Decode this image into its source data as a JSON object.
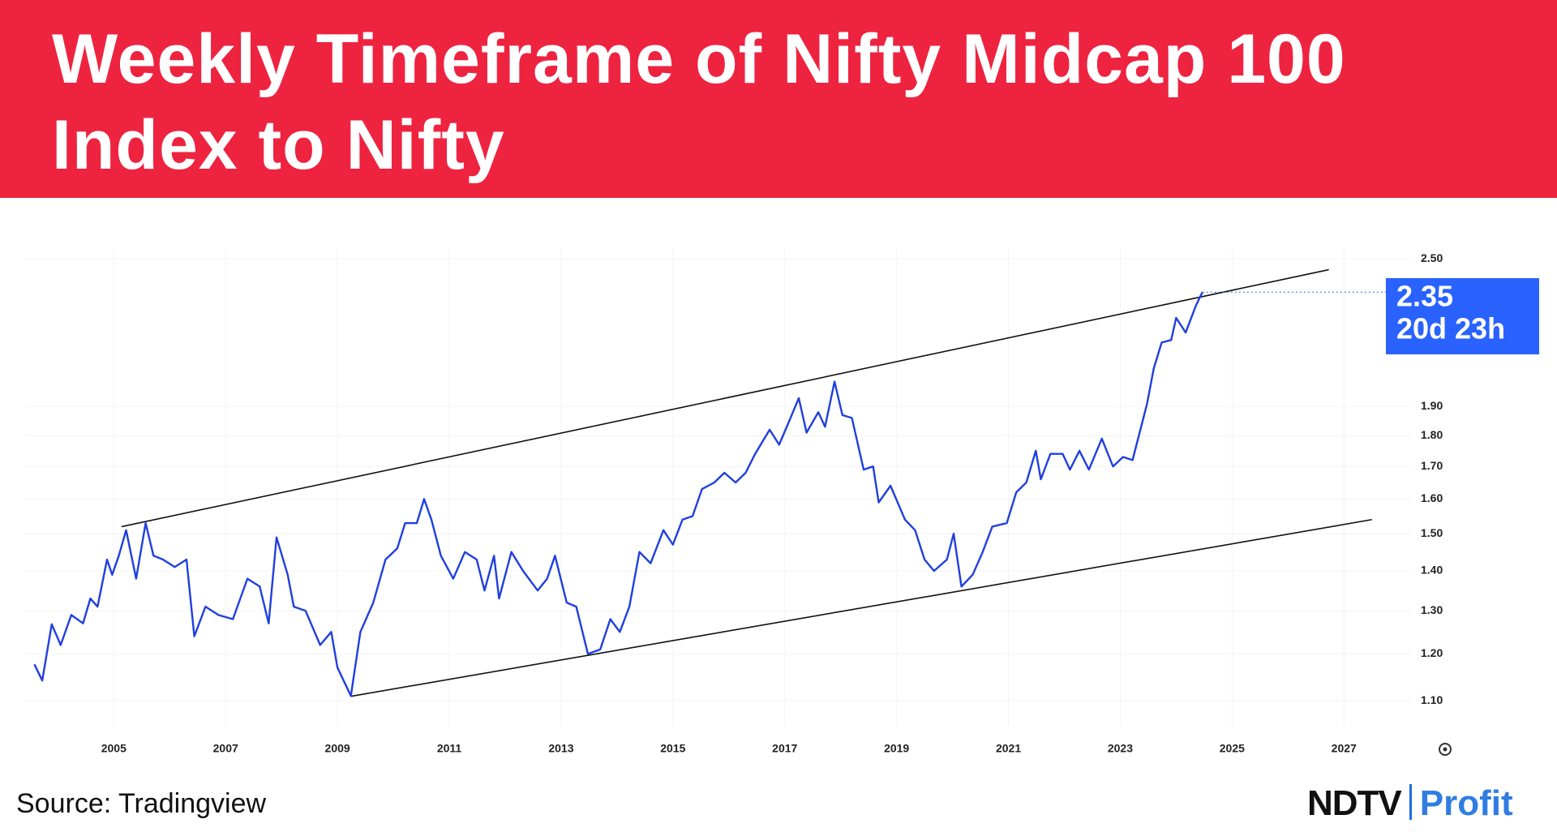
{
  "title": "Weekly Timeframe of Nifty Midcap 100 Index to Nifty",
  "source": "Source: Tradingview",
  "logo": {
    "left": "NDTV",
    "right": "Profit"
  },
  "chart_data": {
    "type": "line",
    "yscale": "log",
    "grid": true,
    "color": "#1f3fe0",
    "x": [
      2003.58,
      2003.72,
      2003.89,
      2004.05,
      2004.24,
      2004.45,
      2004.58,
      2004.71,
      2004.88,
      2004.97,
      2005.09,
      2005.22,
      2005.4,
      2005.57,
      2005.71,
      2005.88,
      2006.09,
      2006.3,
      2006.44,
      2006.64,
      2006.87,
      2007.13,
      2007.39,
      2007.61,
      2007.77,
      2007.91,
      2008.11,
      2008.22,
      2008.43,
      2008.69,
      2008.89,
      2009.0,
      2009.24,
      2009.41,
      2009.64,
      2009.86,
      2010.07,
      2010.21,
      2010.42,
      2010.55,
      2010.68,
      2010.85,
      2011.07,
      2011.28,
      2011.49,
      2011.63,
      2011.8,
      2011.89,
      2012.11,
      2012.32,
      2012.58,
      2012.75,
      2012.89,
      2013.1,
      2013.27,
      2013.48,
      2013.7,
      2013.88,
      2014.05,
      2014.22,
      2014.4,
      2014.6,
      2014.83,
      2015.0,
      2015.17,
      2015.35,
      2015.52,
      2015.74,
      2015.92,
      2016.12,
      2016.3,
      2016.47,
      2016.73,
      2016.9,
      2017.08,
      2017.25,
      2017.39,
      2017.6,
      2017.72,
      2017.89,
      2018.03,
      2018.2,
      2018.41,
      2018.58,
      2018.68,
      2018.89,
      2019.15,
      2019.33,
      2019.5,
      2019.67,
      2019.9,
      2020.02,
      2020.16,
      2020.36,
      2020.54,
      2020.71,
      2020.97,
      2021.14,
      2021.32,
      2021.49,
      2021.58,
      2021.75,
      2021.97,
      2022.1,
      2022.27,
      2022.44,
      2022.67,
      2022.87,
      2023.05,
      2023.22,
      2023.48,
      2023.6,
      2023.74,
      2023.91,
      2024.0,
      2024.17,
      2024.35,
      2024.47
    ],
    "values": [
      1.177,
      1.142,
      1.268,
      1.22,
      1.29,
      1.27,
      1.33,
      1.31,
      1.43,
      1.39,
      1.44,
      1.51,
      1.38,
      1.53,
      1.44,
      1.43,
      1.41,
      1.43,
      1.24,
      1.31,
      1.29,
      1.28,
      1.38,
      1.36,
      1.27,
      1.49,
      1.39,
      1.31,
      1.3,
      1.22,
      1.25,
      1.17,
      1.11,
      1.25,
      1.32,
      1.43,
      1.46,
      1.53,
      1.53,
      1.6,
      1.54,
      1.44,
      1.38,
      1.45,
      1.43,
      1.35,
      1.44,
      1.33,
      1.45,
      1.4,
      1.35,
      1.38,
      1.44,
      1.32,
      1.31,
      1.2,
      1.21,
      1.28,
      1.25,
      1.31,
      1.45,
      1.42,
      1.51,
      1.47,
      1.54,
      1.55,
      1.63,
      1.65,
      1.68,
      1.65,
      1.68,
      1.74,
      1.82,
      1.77,
      1.85,
      1.93,
      1.81,
      1.88,
      1.83,
      1.99,
      1.87,
      1.86,
      1.69,
      1.7,
      1.59,
      1.64,
      1.54,
      1.51,
      1.43,
      1.4,
      1.43,
      1.5,
      1.36,
      1.39,
      1.45,
      1.52,
      1.53,
      1.62,
      1.65,
      1.75,
      1.66,
      1.74,
      1.74,
      1.69,
      1.75,
      1.69,
      1.79,
      1.7,
      1.73,
      1.72,
      1.91,
      2.04,
      2.14,
      2.15,
      2.24,
      2.18,
      2.29,
      2.35
    ],
    "countdown": "20d 23h",
    "trendlines": [
      {
        "x": [
          2005.14,
          2026.73
        ],
        "values": [
          1.52,
          2.45
        ]
      },
      {
        "x": [
          2009.24,
          2027.5
        ],
        "values": [
          1.109,
          1.54
        ]
      }
    ],
    "xlim": [
      2003.4,
      2028.2
    ],
    "xticks": [
      2005,
      2007,
      2009,
      2011,
      2013,
      2015,
      2017,
      2019,
      2021,
      2023,
      2025,
      2027
    ],
    "ylim": [
      1.05,
      2.55
    ],
    "yticks": [
      {
        "value": 1.1,
        "label": "1.10"
      },
      {
        "value": 1.2,
        "label": "1.20"
      },
      {
        "value": 1.3,
        "label": "1.30"
      },
      {
        "value": 1.4,
        "label": "1.40"
      },
      {
        "value": 1.5,
        "label": "1.50"
      },
      {
        "value": 1.6,
        "label": "1.60"
      },
      {
        "value": 1.7,
        "label": "1.70"
      },
      {
        "value": 1.8,
        "label": "1.80"
      },
      {
        "value": 1.9,
        "label": "1.90"
      },
      {
        "value": 2.5,
        "label": "2.50"
      }
    ]
  }
}
